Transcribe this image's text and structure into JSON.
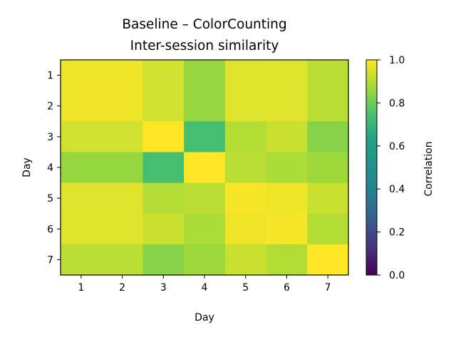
{
  "chart_data": {
    "type": "heatmap",
    "title": "Baseline – ColorCounting",
    "subtitle": "Inter-session similarity",
    "xlabel": "Day",
    "ylabel": "Day",
    "x_categories": [
      "1",
      "2",
      "3",
      "4",
      "5",
      "6",
      "7"
    ],
    "y_categories": [
      "1",
      "2",
      "3",
      "4",
      "5",
      "6",
      "7"
    ],
    "values": [
      [
        0.98,
        0.98,
        0.94,
        0.86,
        0.96,
        0.96,
        0.91
      ],
      [
        0.98,
        0.98,
        0.94,
        0.86,
        0.96,
        0.96,
        0.91
      ],
      [
        0.94,
        0.94,
        1.0,
        0.74,
        0.9,
        0.93,
        0.84
      ],
      [
        0.86,
        0.86,
        0.74,
        1.0,
        0.91,
        0.89,
        0.87
      ],
      [
        0.96,
        0.96,
        0.9,
        0.91,
        0.99,
        0.98,
        0.93
      ],
      [
        0.96,
        0.96,
        0.93,
        0.89,
        0.98,
        0.99,
        0.9
      ],
      [
        0.91,
        0.91,
        0.84,
        0.87,
        0.93,
        0.9,
        1.0
      ]
    ],
    "colorbar": {
      "label": "Correlation",
      "range": [
        0.0,
        1.0
      ],
      "ticks": [
        "0.0",
        "0.2",
        "0.4",
        "0.6",
        "0.8",
        "1.0"
      ],
      "colormap": "viridis"
    }
  }
}
